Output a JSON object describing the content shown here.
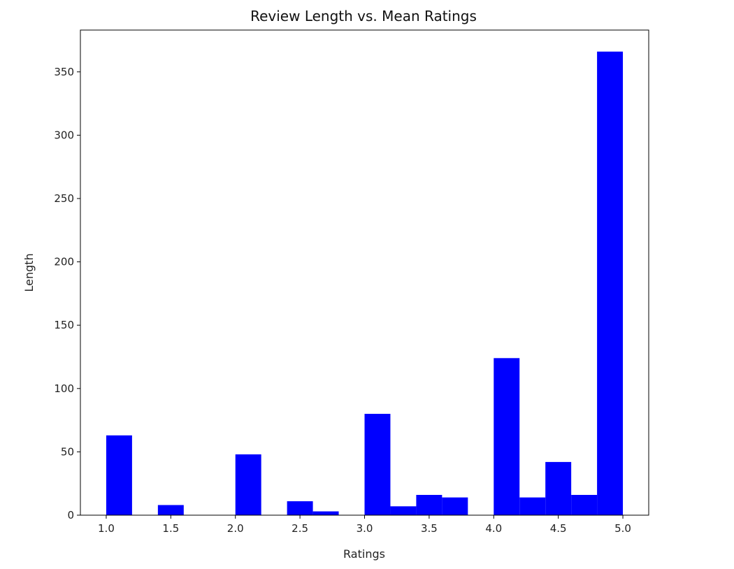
{
  "chart_data": {
    "type": "bar",
    "title": "Review Length vs. Mean Ratings",
    "xlabel": "Ratings",
    "ylabel": "Length",
    "xlim": [
      0.8,
      5.2
    ],
    "ylim": [
      0,
      383
    ],
    "x_ticks": [
      "1.0",
      "1.5",
      "2.0",
      "2.5",
      "3.0",
      "3.5",
      "4.0",
      "4.5",
      "5.0"
    ],
    "y_ticks": [
      "0",
      "50",
      "100",
      "150",
      "200",
      "250",
      "300",
      "350"
    ],
    "bin_width": 0.2,
    "bins": [
      {
        "start": 1.0,
        "value": 63
      },
      {
        "start": 1.2,
        "value": 0
      },
      {
        "start": 1.4,
        "value": 8
      },
      {
        "start": 1.6,
        "value": 0
      },
      {
        "start": 1.8,
        "value": 0
      },
      {
        "start": 2.0,
        "value": 48
      },
      {
        "start": 2.2,
        "value": 0
      },
      {
        "start": 2.4,
        "value": 11
      },
      {
        "start": 2.6,
        "value": 3
      },
      {
        "start": 2.8,
        "value": 0
      },
      {
        "start": 3.0,
        "value": 80
      },
      {
        "start": 3.2,
        "value": 7
      },
      {
        "start": 3.4,
        "value": 16
      },
      {
        "start": 3.6,
        "value": 14
      },
      {
        "start": 3.8,
        "value": 0
      },
      {
        "start": 4.0,
        "value": 124
      },
      {
        "start": 4.2,
        "value": 14
      },
      {
        "start": 4.4,
        "value": 42
      },
      {
        "start": 4.6,
        "value": 16
      },
      {
        "start": 4.8,
        "value": 366
      }
    ],
    "bar_color": "#0000ff",
    "grid": false,
    "legend": "none"
  }
}
